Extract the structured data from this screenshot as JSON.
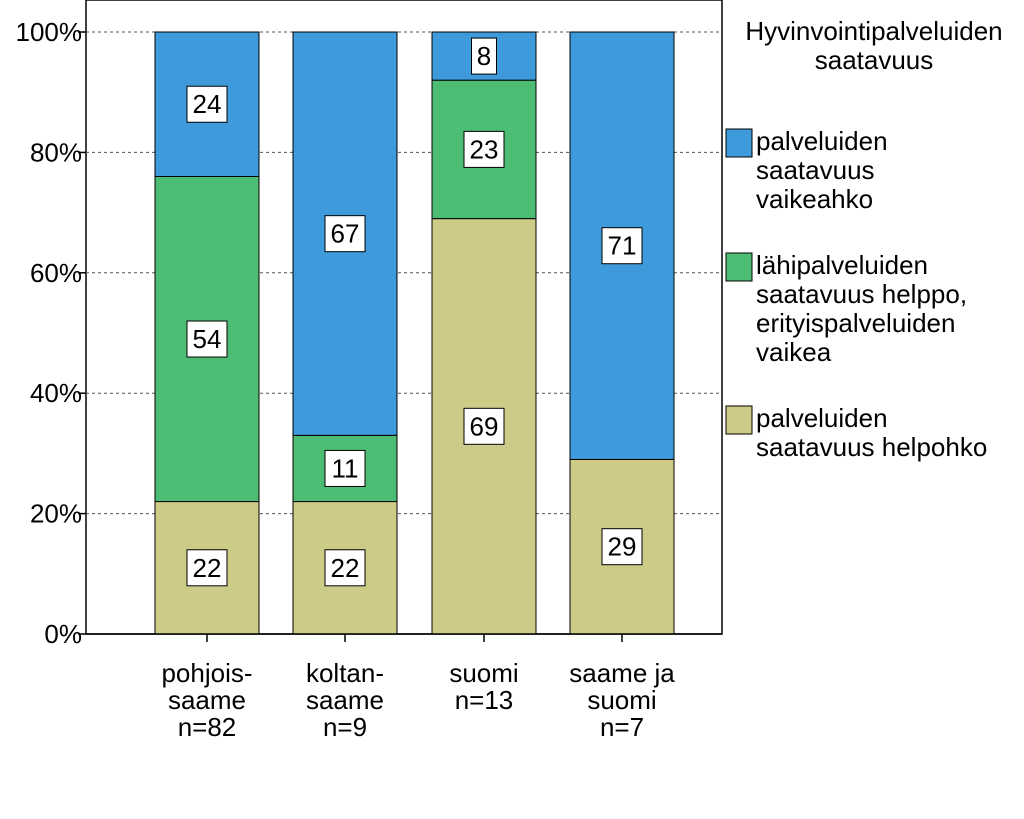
{
  "chart_data": {
    "type": "bar",
    "stacked": true,
    "title": "",
    "xlabel": "",
    "ylabel": "",
    "ylim": [
      0,
      100
    ],
    "yticks": [
      "0%",
      "20%",
      "40%",
      "60%",
      "80%",
      "100%"
    ],
    "ytick_values": [
      0,
      20,
      40,
      60,
      80,
      100
    ],
    "grid": "horizontal dashed",
    "categories": [
      [
        "pohjois-",
        "saame",
        "n=82"
      ],
      [
        "koltan-",
        "saame",
        "n=9"
      ],
      [
        "suomi",
        "n=13"
      ],
      [
        "saame ja",
        "suomi",
        "n=7"
      ]
    ],
    "series": [
      {
        "name": "palveluiden saatavuus helpohko",
        "color": "#cccc88",
        "values": [
          22,
          22,
          69,
          29
        ],
        "labels": [
          "22",
          "22",
          "69",
          "29"
        ]
      },
      {
        "name": "lähipalveluiden saatavuus helppo, erityispalveluiden vaikea",
        "color": "#4dbd74",
        "values": [
          54,
          11,
          23,
          0
        ],
        "labels": [
          "54",
          "11",
          "23",
          ""
        ]
      },
      {
        "name": "palveluiden saatavuus vaikeahko",
        "color": "#3e9ada",
        "values": [
          24,
          67,
          8,
          71
        ],
        "labels": [
          "24",
          "67",
          "8",
          "71"
        ]
      }
    ],
    "legend": {
      "placement": "right",
      "title": [
        "Hyvinvointipalveluiden",
        "saatavuus"
      ],
      "entries": [
        {
          "lines": [
            "palveluiden",
            "saatavuus",
            "vaikeahko"
          ],
          "color": "#3e9ada"
        },
        {
          "lines": [
            "lähipalveluiden",
            "saatavuus helppo,",
            "erityispalveluiden",
            "vaikea"
          ],
          "color": "#4dbd74"
        },
        {
          "lines": [
            "palveluiden",
            "saatavuus helpohko"
          ],
          "color": "#cccc88"
        }
      ]
    }
  }
}
